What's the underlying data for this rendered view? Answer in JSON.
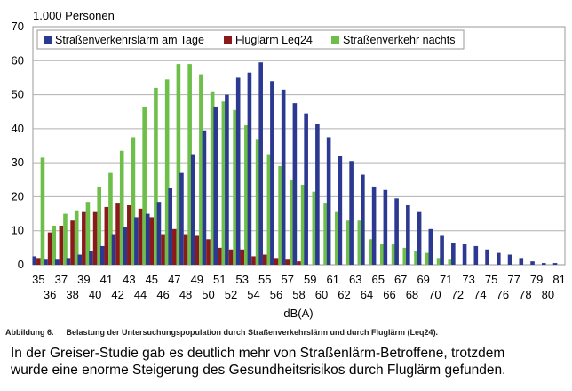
{
  "chart_data": {
    "type": "bar",
    "title": "",
    "unit_label": "1.000 Personen",
    "xlabel": "dB(A)",
    "ylabel": "",
    "ylim": [
      0,
      70
    ],
    "yticks": [
      0,
      10,
      20,
      30,
      40,
      50,
      60,
      70
    ],
    "grid": true,
    "legend_position": "top",
    "categories": [
      "35",
      "36",
      "37",
      "38",
      "39",
      "40",
      "41",
      "42",
      "43",
      "44",
      "45",
      "46",
      "47",
      "48",
      "49",
      "50",
      "51",
      "52",
      "53",
      "54",
      "55",
      "56",
      "57",
      "58",
      "59",
      "60",
      "61",
      "62",
      "63",
      "64",
      "65",
      "66",
      "67",
      "68",
      "69",
      "70",
      "71",
      "72",
      "73",
      "74",
      "75",
      "76",
      "77",
      "78",
      "79",
      "80",
      "81"
    ],
    "series": [
      {
        "name": "Straßenverkehrslärm am Tage",
        "color": "#2b3990",
        "values": [
          2.5,
          1.5,
          1.5,
          2,
          3,
          4,
          5.5,
          9,
          11,
          14,
          15,
          18.5,
          22.5,
          27,
          32.5,
          39.5,
          46.5,
          50,
          55,
          56.5,
          59.5,
          54,
          51.5,
          47.5,
          44.5,
          41.5,
          37.5,
          32,
          30.5,
          26.5,
          23,
          22,
          19.5,
          17.5,
          15.5,
          10.5,
          8.5,
          6.5,
          6,
          5.5,
          4.5,
          3.5,
          3,
          2,
          1,
          0.5,
          0.5
        ]
      },
      {
        "name": "Fluglärm Leq24",
        "color": "#8b1a1a",
        "values": [
          2,
          9.5,
          11.5,
          13,
          15.5,
          15.5,
          17,
          18,
          17.5,
          16.5,
          14,
          9,
          10.5,
          9,
          8.5,
          7.5,
          5,
          4.5,
          4.5,
          2.5,
          3,
          2,
          1.5,
          1,
          0,
          0,
          0,
          0,
          0,
          0,
          0,
          0,
          0,
          0,
          0,
          0,
          0,
          0,
          0,
          0,
          0,
          0,
          0,
          0,
          0,
          0,
          0
        ]
      },
      {
        "name": "Straßenverkehr nachts",
        "color": "#6dbf4a",
        "values": [
          31.5,
          11.5,
          15,
          16,
          18.5,
          23,
          27,
          33.5,
          37.5,
          46.5,
          52,
          54.5,
          59,
          59,
          56,
          51,
          48,
          45.5,
          41,
          37,
          32.5,
          29,
          25,
          23.5,
          21.5,
          18,
          15.5,
          13,
          13,
          7.5,
          6,
          6,
          5,
          4,
          3.5,
          2,
          1.5,
          0,
          0,
          0,
          0,
          0,
          0,
          0,
          0,
          0,
          0
        ]
      }
    ]
  },
  "caption": {
    "label": "Abbildung 6.",
    "text": "Belastung der Untersuchungspopulation durch Straßenverkehrslärm und durch Fluglärm (Leq24)."
  },
  "note": {
    "line1": "In der Greiser-Studie gab es deutlich mehr von Straßenlärm-Betroffene, trotzdem",
    "line2": "wurde eine enorme Steigerung des Gesundheitsrisikos durch Fluglärm gefunden."
  }
}
